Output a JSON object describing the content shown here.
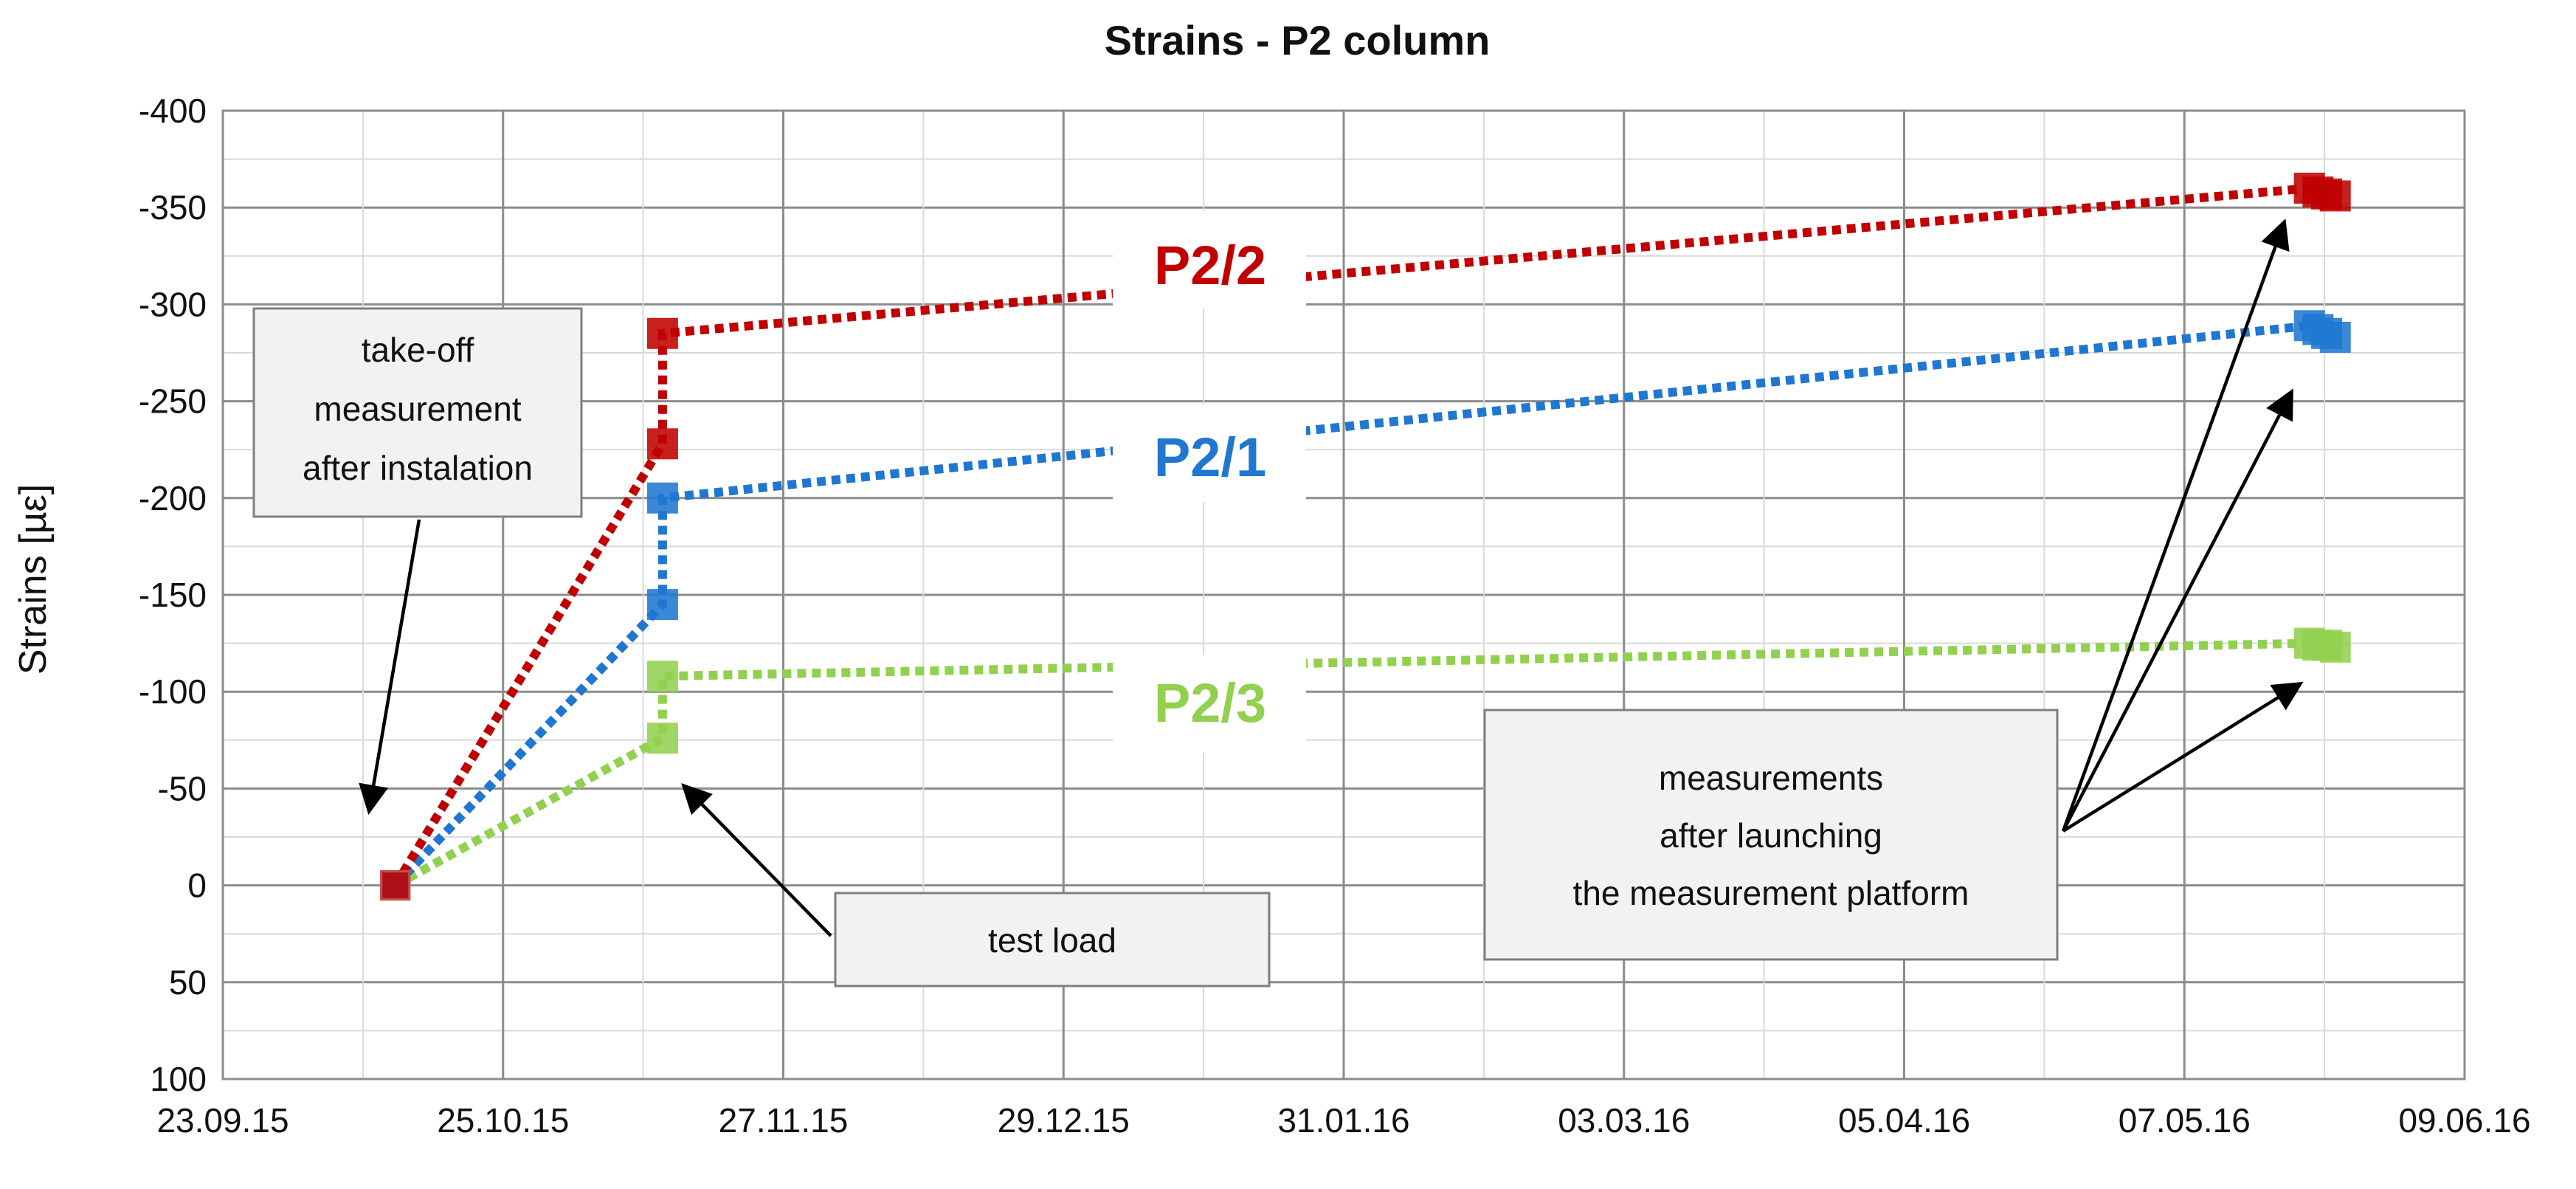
{
  "chart_data": {
    "type": "line",
    "title": "Strains - P2 column",
    "ylabel": "Strains [µε]",
    "xlabel": "",
    "x_ticks": [
      "23.09.15",
      "25.10.15",
      "27.11.15",
      "29.12.15",
      "31.01.16",
      "03.03.16",
      "05.04.16",
      "07.05.16",
      "09.06.16"
    ],
    "y_ticks": [
      "-400",
      "-350",
      "-300",
      "-250",
      "-200",
      "-150",
      "-100",
      "-50",
      "0",
      "50",
      "100"
    ],
    "ylim": [
      100,
      -400
    ],
    "xlim": [
      "2015-09-23",
      "2016-06-09"
    ],
    "grid": true,
    "series": [
      {
        "name": "P2/2",
        "color": "#c00000",
        "points": [
          {
            "x": "2015-10-13",
            "y": 0
          },
          {
            "x": "2015-11-13",
            "y": -228
          },
          {
            "x": "2015-11-13",
            "y": -285
          },
          {
            "x": "2016-05-22",
            "y": -360
          },
          {
            "x": "2016-05-23",
            "y": -358
          },
          {
            "x": "2016-05-24",
            "y": -357
          },
          {
            "x": "2016-05-25",
            "y": -356
          }
        ]
      },
      {
        "name": "P2/1",
        "color": "#1f77d0",
        "points": [
          {
            "x": "2015-10-13",
            "y": 0
          },
          {
            "x": "2015-11-13",
            "y": -145
          },
          {
            "x": "2015-11-13",
            "y": -200
          },
          {
            "x": "2016-05-22",
            "y": -289
          },
          {
            "x": "2016-05-23",
            "y": -287
          },
          {
            "x": "2016-05-24",
            "y": -285
          },
          {
            "x": "2016-05-25",
            "y": -283
          }
        ]
      },
      {
        "name": "P2/3",
        "color": "#92d050",
        "points": [
          {
            "x": "2015-10-13",
            "y": 0
          },
          {
            "x": "2015-11-13",
            "y": -76
          },
          {
            "x": "2015-11-13",
            "y": -108
          },
          {
            "x": "2016-05-22",
            "y": -125
          },
          {
            "x": "2016-05-23",
            "y": -124
          },
          {
            "x": "2016-05-24",
            "y": -124
          },
          {
            "x": "2016-05-25",
            "y": -123
          }
        ]
      }
    ],
    "annotations": [
      {
        "id": "takeoff",
        "lines": [
          "take-off",
          "measurement",
          "after instalation"
        ]
      },
      {
        "id": "testload",
        "lines": [
          "test load"
        ]
      },
      {
        "id": "launch",
        "lines": [
          "measurements",
          "after launching",
          "the measurement platform"
        ]
      }
    ]
  }
}
